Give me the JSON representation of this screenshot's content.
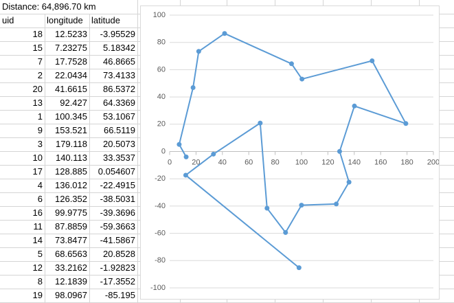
{
  "table": {
    "title": "Distance: 64,896.70 km",
    "headers": [
      "uid",
      "longitude",
      "latitude"
    ],
    "uid": [
      18,
      15,
      7,
      2,
      20,
      13,
      1,
      9,
      3,
      10,
      17,
      4,
      6,
      16,
      11,
      14,
      5,
      12,
      8,
      19
    ]
  },
  "chart_data": {
    "type": "line",
    "markers": true,
    "x": [
      12.5233,
      7.23275,
      17.7528,
      22.0434,
      41.6615,
      92.427,
      100.345,
      153.521,
      179.118,
      140.113,
      128.885,
      136.012,
      126.352,
      99.9775,
      87.8859,
      73.8477,
      68.6563,
      33.2162,
      12.1839,
      98.0967
    ],
    "series": [
      {
        "color": "#5b9bd5",
        "values": [
          -3.95529,
          5.18342,
          46.8665,
          73.4133,
          86.5372,
          64.3369,
          53.1067,
          66.5119,
          20.5073,
          33.3537,
          0.054607,
          -22.4915,
          -38.5031,
          -39.3696,
          -59.3663,
          -41.5867,
          20.8528,
          -1.92823,
          -17.3552,
          -85.195
        ]
      }
    ],
    "xlim": [
      0,
      200
    ],
    "xticks": [
      0,
      20,
      40,
      60,
      80,
      100,
      120,
      140,
      160,
      180,
      200
    ],
    "ylim": [
      -100,
      100
    ],
    "yticks": [
      -100,
      -80,
      -60,
      -40,
      -20,
      0,
      20,
      40,
      60,
      80,
      100
    ],
    "grid": true
  }
}
